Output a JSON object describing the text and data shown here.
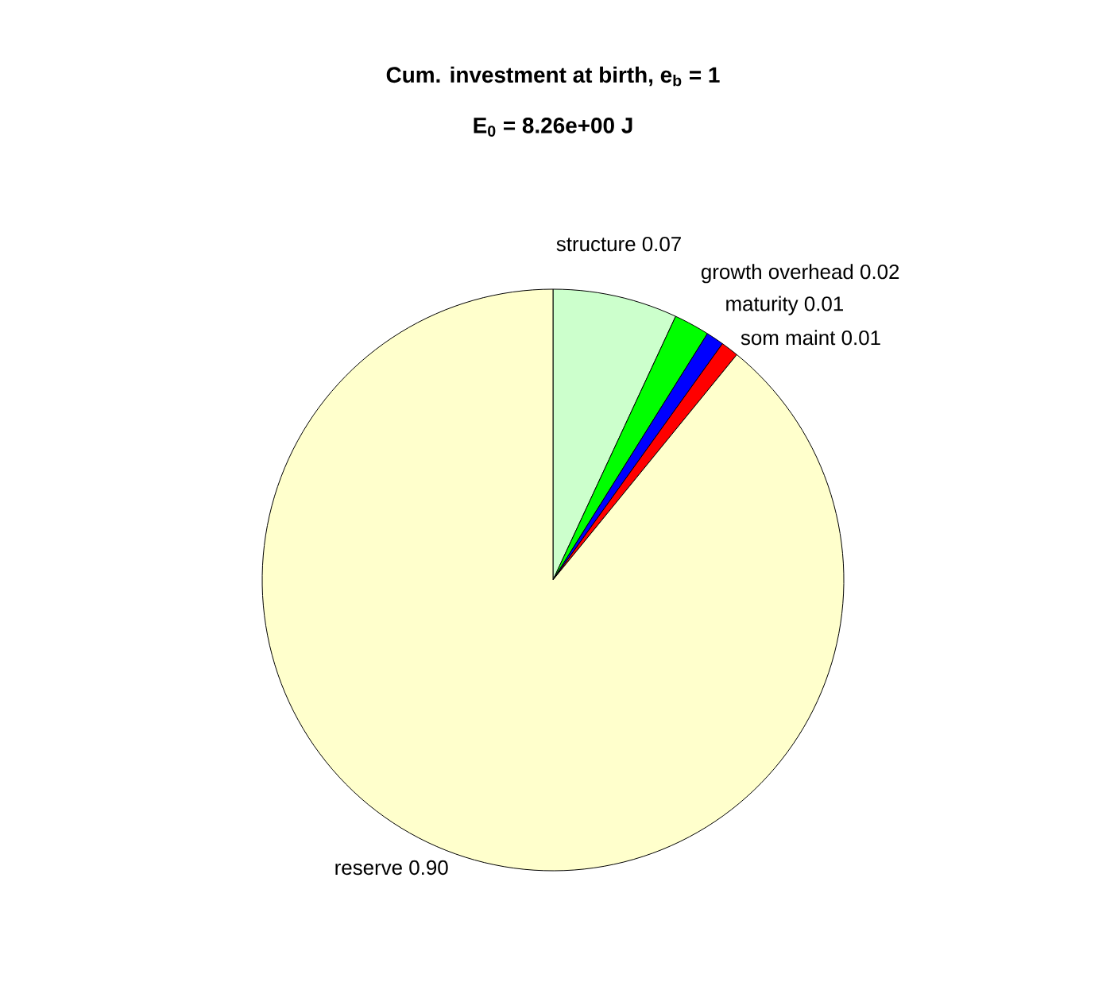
{
  "chart_data": {
    "type": "pie",
    "title": "Cum. investment at birth, e$_{b}$ = 1",
    "subtitle": "E$_{0}$ = 8.26e+00 J",
    "categories": [
      "structure",
      "growth overhead",
      "maturity",
      "som maint",
      "reserve"
    ],
    "values": [
      0.07,
      0.02,
      0.01,
      0.01,
      0.9
    ],
    "value_labels": [
      "0.07",
      "0.02",
      "0.01",
      "0.01",
      "0.90"
    ],
    "colors": [
      "#ccffcc",
      "#00ff00",
      "#0000ff",
      "#ff0000",
      "#ffffcc"
    ]
  }
}
